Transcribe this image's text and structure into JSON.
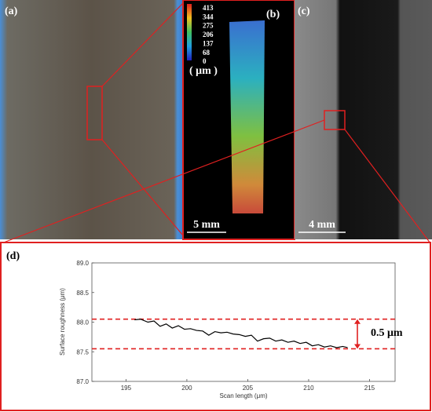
{
  "panels": {
    "a": {
      "label": "(a)"
    },
    "b": {
      "label": "(b)",
      "colorbar_ticks": [
        413,
        344,
        275,
        206,
        137,
        68,
        0
      ],
      "unit": "( μm )",
      "scale_bar": "5 mm"
    },
    "c": {
      "label": "(c)",
      "scale_bar": "4 mm"
    },
    "d": {
      "label": "(d)"
    }
  },
  "chart_data": {
    "type": "line",
    "xlabel": "Scan length (μm)",
    "ylabel": "Surface roughness (μm)",
    "xlim": [
      192.2,
      217.1
    ],
    "xticks": [
      195,
      200,
      205,
      210,
      215
    ],
    "ylim": [
      87.0,
      89.0
    ],
    "yticks": [
      {
        "value": 87.0,
        "label": "87.0"
      },
      {
        "value": 87.5,
        "label": "87.5"
      },
      {
        "value": 88.0,
        "label": "88.0"
      },
      {
        "value": 88.5,
        "label": "88.5"
      },
      {
        "value": 89.0,
        "label": "89.0"
      }
    ],
    "series": [
      {
        "color": "#000000",
        "x": [
          195.7,
          196.2,
          196.8,
          197.3,
          197.8,
          198.3,
          198.8,
          199.3,
          199.8,
          200.3,
          200.8,
          201.3,
          201.8,
          202.3,
          202.8,
          203.3,
          203.8,
          204.3,
          204.8,
          205.3,
          205.8,
          206.3,
          206.8,
          207.3,
          207.8,
          208.3,
          208.8,
          209.3,
          209.8,
          210.3,
          210.8,
          211.3,
          211.8,
          212.3,
          212.8,
          213.2
        ],
        "values": [
          88.04,
          88.05,
          88.0,
          88.02,
          87.93,
          87.97,
          87.9,
          87.94,
          87.88,
          87.89,
          87.86,
          87.85,
          87.78,
          87.84,
          87.82,
          87.83,
          87.8,
          87.79,
          87.76,
          87.78,
          87.68,
          87.72,
          87.73,
          87.68,
          87.7,
          87.66,
          87.68,
          87.64,
          87.66,
          87.6,
          87.62,
          87.58,
          87.6,
          87.57,
          87.59,
          87.57
        ]
      }
    ],
    "reference_lines": {
      "values": [
        88.05,
        87.55
      ],
      "color": "#e02020"
    },
    "annotation": "0.5 μm"
  }
}
